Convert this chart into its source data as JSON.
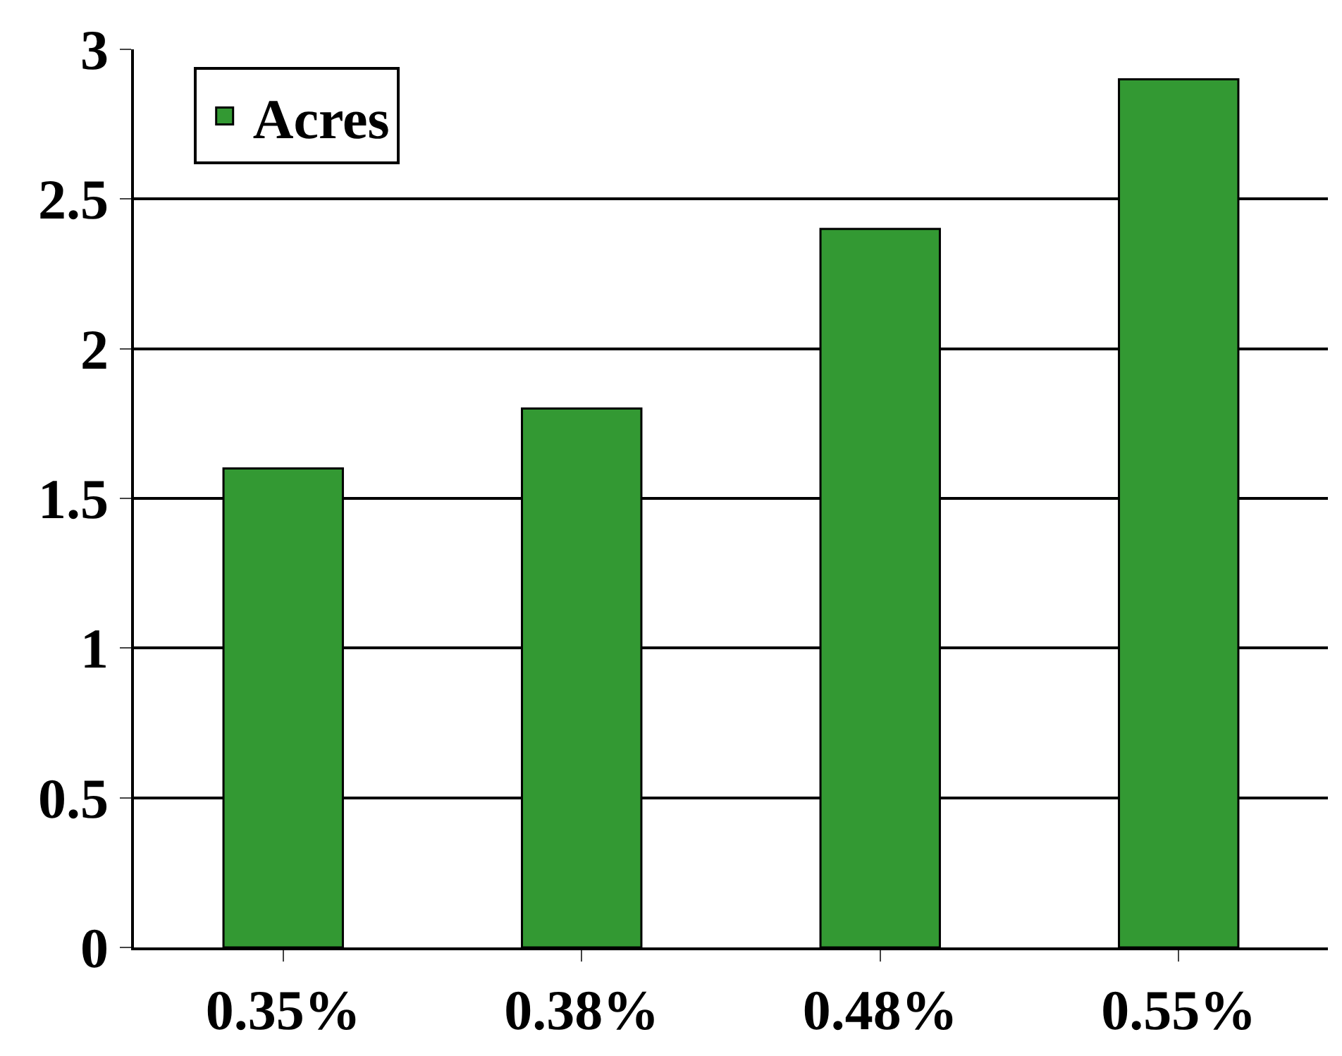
{
  "chart_data": {
    "type": "bar",
    "categories": [
      "0.35%",
      "0.38%",
      "0.48%",
      "0.55%"
    ],
    "series": [
      {
        "name": "Acres",
        "color": "#339933",
        "values": [
          1.6,
          1.8,
          2.4,
          2.9
        ]
      }
    ],
    "ylim": [
      0,
      3
    ],
    "yticks": [
      0,
      0.5,
      1,
      1.5,
      2,
      2.5,
      3
    ],
    "grid": "y",
    "legend": "top left"
  }
}
